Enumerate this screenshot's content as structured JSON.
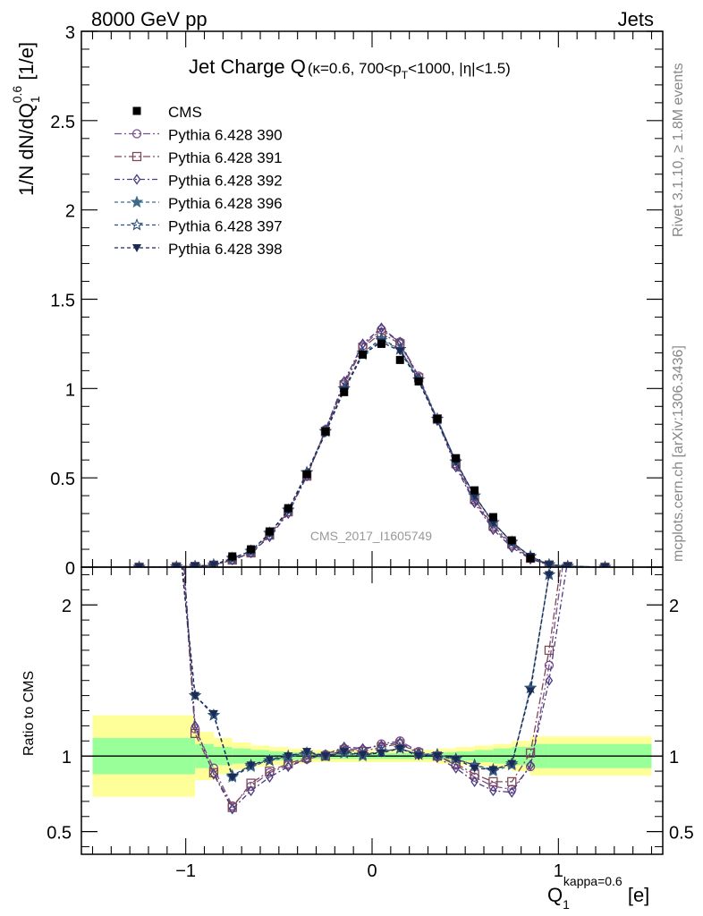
{
  "header": {
    "left": "8000 GeV pp",
    "right": "Jets"
  },
  "side_labels": {
    "rivet": "Rivet 3.1.10, ≥ 1.8M events",
    "mcplots": "mcplots.cern.ch [arXiv:1306.3436]"
  },
  "chart_data": {
    "type": "line",
    "title_main": "Jet Charge Q",
    "title_sub": "(κ=0.6, 700<p",
    "title_sub_T": "T",
    "title_sub_end": "<1000, |η|<1.5)",
    "watermark": "CMS_2017_I1605749",
    "ylabel_top": "1/N dN/dQ",
    "ylabel_top_sup": "0.6",
    "ylabel_top_sub": "1",
    "ylabel_top_unit": " [1/e]",
    "ylabel_ratio": "Ratio to CMS",
    "xlabel": "Q",
    "xlabel_sub": "1",
    "xlabel_sup": "kappa=0.6",
    "xlabel_unit": " [e]",
    "xlim": [
      -1.56,
      1.56
    ],
    "ylim_top": [
      0,
      3
    ],
    "ylim_ratio": [
      0.35,
      2.25
    ],
    "x_ticks": [
      -1,
      0,
      1
    ],
    "x_tick_labels": [
      "−1",
      "0",
      "1"
    ],
    "y_ticks_top": [
      0,
      0.5,
      1,
      1.5,
      2,
      2.5,
      3
    ],
    "y_tick_labels_top": [
      "0",
      "0.5",
      "1",
      "1.5",
      "2",
      "2.5",
      "3"
    ],
    "y_ticks_ratio": [
      0.5,
      1,
      2
    ],
    "y_tick_labels_ratio": [
      "0.5",
      "1",
      "2"
    ],
    "x": [
      -1.25,
      -1.05,
      -0.95,
      -0.85,
      -0.75,
      -0.65,
      -0.55,
      -0.45,
      -0.35,
      -0.25,
      -0.15,
      -0.05,
      0.05,
      0.15,
      0.25,
      0.35,
      0.45,
      0.55,
      0.65,
      0.75,
      0.85,
      0.95,
      1.05,
      1.25
    ],
    "data": {
      "name": "CMS",
      "values": [
        0.0,
        0.002,
        0.005,
        0.012,
        0.06,
        0.1,
        0.2,
        0.33,
        0.52,
        0.76,
        0.98,
        1.19,
        1.25,
        1.16,
        1.04,
        0.83,
        0.61,
        0.43,
        0.28,
        0.15,
        0.05,
        0.01,
        0.003,
        0.0
      ],
      "band_edges": [
        -1.5,
        -0.95,
        -0.85,
        -0.75,
        -0.65,
        -0.55,
        -0.45,
        -0.35,
        -0.25,
        -0.15,
        -0.05,
        0.05,
        0.15,
        0.25,
        0.35,
        0.45,
        0.55,
        0.65,
        0.75,
        0.85,
        0.95,
        1.5
      ],
      "band_stat": [
        0.12,
        0.08,
        0.06,
        0.05,
        0.04,
        0.03,
        0.025,
        0.02,
        0.02,
        0.02,
        0.02,
        0.02,
        0.02,
        0.02,
        0.025,
        0.03,
        0.04,
        0.05,
        0.06,
        0.08,
        0.08
      ],
      "band_total": [
        0.27,
        0.16,
        0.12,
        0.09,
        0.07,
        0.06,
        0.05,
        0.04,
        0.04,
        0.04,
        0.04,
        0.04,
        0.04,
        0.04,
        0.05,
        0.06,
        0.07,
        0.08,
        0.1,
        0.13,
        0.13
      ]
    },
    "series": [
      {
        "name": "Pythia 6.428 390",
        "color": "#7b4f8c",
        "marker": "circle",
        "dash": "8,3,2,3",
        "values": [
          0.0,
          0.0015,
          0.004,
          0.011,
          0.04,
          0.08,
          0.18,
          0.31,
          0.51,
          0.77,
          1.03,
          1.24,
          1.33,
          1.26,
          1.07,
          0.83,
          0.57,
          0.37,
          0.22,
          0.12,
          0.05,
          0.012,
          0.004,
          0.0
        ],
        "ratio": [
          3.2,
          3.0,
          1.18,
          0.92,
          0.67,
          0.8,
          0.89,
          0.94,
          0.98,
          1.01,
          1.05,
          1.04,
          1.08,
          1.1,
          1.03,
          1.0,
          0.94,
          0.86,
          0.8,
          0.78,
          0.93,
          1.6,
          2.5,
          3.2
        ]
      },
      {
        "name": "Pythia 6.428 391",
        "color": "#7d4a57",
        "marker": "square",
        "dash": "8,3,2,3",
        "values": [
          0.0,
          0.0015,
          0.004,
          0.011,
          0.04,
          0.08,
          0.18,
          0.31,
          0.51,
          0.76,
          1.02,
          1.23,
          1.31,
          1.25,
          1.06,
          0.83,
          0.58,
          0.38,
          0.23,
          0.13,
          0.05,
          0.012,
          0.004,
          0.0
        ],
        "ratio": [
          3.1,
          2.9,
          1.15,
          0.89,
          0.66,
          0.82,
          0.9,
          0.95,
          0.99,
          1.0,
          1.04,
          1.03,
          1.06,
          1.08,
          1.02,
          1.0,
          0.95,
          0.88,
          0.83,
          0.83,
          1.02,
          1.7,
          2.6,
          3.2
        ]
      },
      {
        "name": "Pythia 6.428 392",
        "color": "#4a3a80",
        "marker": "diamond",
        "dash": "6,3,2,3",
        "values": [
          0.0,
          0.0015,
          0.004,
          0.011,
          0.04,
          0.08,
          0.17,
          0.3,
          0.51,
          0.77,
          1.04,
          1.25,
          1.34,
          1.26,
          1.06,
          0.82,
          0.56,
          0.36,
          0.21,
          0.11,
          0.045,
          0.012,
          0.004,
          0.0
        ],
        "ratio": [
          3.2,
          3.0,
          1.2,
          0.88,
          0.65,
          0.77,
          0.86,
          0.93,
          0.98,
          1.01,
          1.06,
          1.05,
          1.07,
          1.09,
          1.02,
          0.99,
          0.92,
          0.83,
          0.77,
          0.76,
          0.94,
          1.5,
          2.3,
          3.0
        ]
      },
      {
        "name": "Pythia 6.428 396",
        "color": "#3c6a8a",
        "marker": "star",
        "dash": "4,3",
        "values": [
          0.0,
          0.002,
          0.005,
          0.013,
          0.05,
          0.09,
          0.19,
          0.32,
          0.53,
          0.76,
          1.0,
          1.19,
          1.27,
          1.22,
          1.05,
          0.83,
          0.59,
          0.4,
          0.25,
          0.14,
          0.06,
          0.014,
          0.005,
          0.0
        ],
        "ratio": [
          2.8,
          2.6,
          1.4,
          1.27,
          0.86,
          0.93,
          0.97,
          0.99,
          1.02,
          1.0,
          1.02,
          1.0,
          1.03,
          1.05,
          1.01,
          1.01,
          0.98,
          0.94,
          0.9,
          0.94,
          1.45,
          2.2,
          2.8,
          3.2
        ]
      },
      {
        "name": "Pythia 6.428 397",
        "color": "#2f4f7a",
        "marker": "star-open",
        "dash": "4,3",
        "values": [
          0.0,
          0.002,
          0.005,
          0.013,
          0.05,
          0.09,
          0.19,
          0.32,
          0.53,
          0.76,
          1.0,
          1.2,
          1.28,
          1.22,
          1.05,
          0.83,
          0.59,
          0.4,
          0.25,
          0.14,
          0.06,
          0.014,
          0.005,
          0.0
        ],
        "ratio": [
          2.8,
          2.6,
          1.4,
          1.27,
          0.87,
          0.94,
          0.97,
          1.0,
          1.02,
          1.0,
          1.02,
          1.01,
          1.03,
          1.05,
          1.01,
          1.01,
          0.98,
          0.94,
          0.91,
          0.95,
          1.45,
          2.2,
          2.8,
          3.2
        ]
      },
      {
        "name": "Pythia 6.428 398",
        "color": "#1c2b55",
        "marker": "triangle-down",
        "dash": "4,3",
        "values": [
          0.0,
          0.002,
          0.005,
          0.013,
          0.05,
          0.09,
          0.19,
          0.32,
          0.52,
          0.75,
          0.99,
          1.19,
          1.26,
          1.21,
          1.04,
          0.82,
          0.59,
          0.4,
          0.25,
          0.14,
          0.06,
          0.014,
          0.005,
          0.0
        ],
        "ratio": [
          2.8,
          2.6,
          1.4,
          1.28,
          0.86,
          0.94,
          0.98,
          1.0,
          1.03,
          1.0,
          1.03,
          1.01,
          1.02,
          1.05,
          1.0,
          1.0,
          0.98,
          0.92,
          0.91,
          0.95,
          1.43,
          2.2,
          2.8,
          3.2
        ]
      }
    ],
    "colors": {
      "band_stat": "#99ff99",
      "band_total": "#ffff99",
      "data": "#000000"
    }
  }
}
